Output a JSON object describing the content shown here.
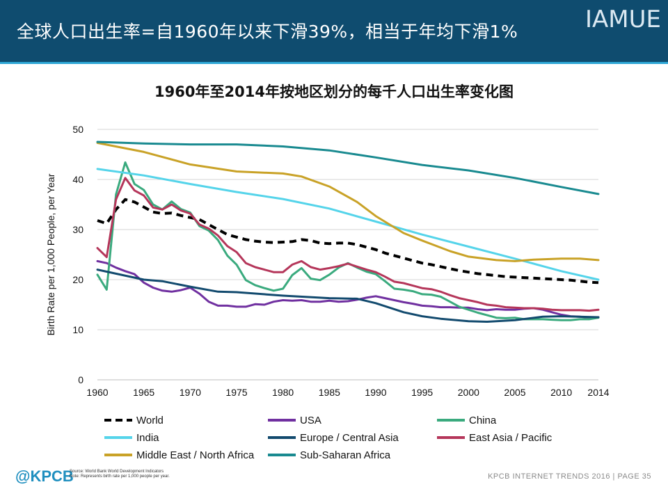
{
  "header": {
    "title": "全球人口出生率=自1960年以来下滑39%，相当于年均下滑1%",
    "brand": "IAMUE",
    "bg_color": "#0f4c6f",
    "accent_color": "#2fa7d6"
  },
  "footer": {
    "logo": "@KPCB",
    "source_line1": "Source: World Bank World Development Indicators",
    "source_line2": "Note: Represents birth rate per 1,000 people per year.",
    "text": "KPCB INTERNET TRENDS 2016  |  PAGE 35"
  },
  "chart_data": {
    "type": "line",
    "title": "1960年至2014年按地区划分的每千人口出生率变化图",
    "xlabel": "",
    "ylabel": "Birth Rate per 1,000 People, per Year",
    "xlim": [
      1960,
      2014
    ],
    "ylim": [
      0,
      50
    ],
    "x_ticks": [
      1960,
      1965,
      1970,
      1975,
      1980,
      1985,
      1990,
      1995,
      2000,
      2005,
      2010,
      2014
    ],
    "y_ticks": [
      0,
      10,
      20,
      30,
      40,
      50
    ],
    "grid": true,
    "legend_position": "bottom",
    "series": [
      {
        "name": "World",
        "color": "#000000",
        "dashed": true,
        "points": [
          [
            1960,
            31.8
          ],
          [
            1961,
            31.2
          ],
          [
            1962,
            34
          ],
          [
            1963,
            36
          ],
          [
            1964,
            35.5
          ],
          [
            1965,
            34.5
          ],
          [
            1966,
            33.5
          ],
          [
            1967,
            33.2
          ],
          [
            1968,
            33.3
          ],
          [
            1969,
            32.8
          ],
          [
            1970,
            32.4
          ],
          [
            1971,
            32
          ],
          [
            1972,
            31
          ],
          [
            1973,
            30
          ],
          [
            1974,
            29
          ],
          [
            1975,
            28.5
          ],
          [
            1976,
            28
          ],
          [
            1977,
            27.7
          ],
          [
            1978,
            27.5
          ],
          [
            1979,
            27.4
          ],
          [
            1980,
            27.5
          ],
          [
            1981,
            27.6
          ],
          [
            1982,
            28
          ],
          [
            1983,
            27.8
          ],
          [
            1984,
            27.3
          ],
          [
            1985,
            27.2
          ],
          [
            1986,
            27.3
          ],
          [
            1987,
            27.3
          ],
          [
            1988,
            27
          ],
          [
            1989,
            26.5
          ],
          [
            1990,
            26
          ],
          [
            1991,
            25.3
          ],
          [
            1992,
            24.8
          ],
          [
            1993,
            24.3
          ],
          [
            1994,
            23.8
          ],
          [
            1995,
            23.3
          ],
          [
            1996,
            23
          ],
          [
            1997,
            22.6
          ],
          [
            1998,
            22.2
          ],
          [
            1999,
            21.8
          ],
          [
            2000,
            21.5
          ],
          [
            2001,
            21.2
          ],
          [
            2002,
            21
          ],
          [
            2003,
            20.8
          ],
          [
            2004,
            20.6
          ],
          [
            2005,
            20.5
          ],
          [
            2006,
            20.4
          ],
          [
            2007,
            20.3
          ],
          [
            2008,
            20.2
          ],
          [
            2009,
            20.1
          ],
          [
            2010,
            20
          ],
          [
            2011,
            19.9
          ],
          [
            2012,
            19.7
          ],
          [
            2013,
            19.5
          ],
          [
            2014,
            19.4
          ]
        ]
      },
      {
        "name": "USA",
        "color": "#7030a0",
        "points": [
          [
            1960,
            23.7
          ],
          [
            1961,
            23.3
          ],
          [
            1962,
            22.4
          ],
          [
            1963,
            21.7
          ],
          [
            1964,
            21.1
          ],
          [
            1965,
            19.4
          ],
          [
            1966,
            18.4
          ],
          [
            1967,
            17.8
          ],
          [
            1968,
            17.6
          ],
          [
            1969,
            17.9
          ],
          [
            1970,
            18.4
          ],
          [
            1971,
            17.2
          ],
          [
            1972,
            15.6
          ],
          [
            1973,
            14.8
          ],
          [
            1974,
            14.8
          ],
          [
            1975,
            14.6
          ],
          [
            1976,
            14.6
          ],
          [
            1977,
            15.1
          ],
          [
            1978,
            15
          ],
          [
            1979,
            15.6
          ],
          [
            1980,
            15.9
          ],
          [
            1981,
            15.8
          ],
          [
            1982,
            15.9
          ],
          [
            1983,
            15.6
          ],
          [
            1984,
            15.6
          ],
          [
            1985,
            15.8
          ],
          [
            1986,
            15.6
          ],
          [
            1987,
            15.7
          ],
          [
            1988,
            16
          ],
          [
            1989,
            16.4
          ],
          [
            1990,
            16.7
          ],
          [
            1991,
            16.3
          ],
          [
            1992,
            15.9
          ],
          [
            1993,
            15.5
          ],
          [
            1994,
            15.2
          ],
          [
            1995,
            14.8
          ],
          [
            1996,
            14.7
          ],
          [
            1997,
            14.5
          ],
          [
            1998,
            14.5
          ],
          [
            1999,
            14.4
          ],
          [
            2000,
            14.4
          ],
          [
            2001,
            14.1
          ],
          [
            2002,
            13.9
          ],
          [
            2003,
            14.1
          ],
          [
            2004,
            14
          ],
          [
            2005,
            14
          ],
          [
            2006,
            14.2
          ],
          [
            2007,
            14.3
          ],
          [
            2008,
            14
          ],
          [
            2009,
            13.5
          ],
          [
            2010,
            13
          ],
          [
            2011,
            12.7
          ],
          [
            2012,
            12.6
          ],
          [
            2013,
            12.4
          ],
          [
            2014,
            12.5
          ]
        ]
      },
      {
        "name": "China",
        "color": "#3aaa7e",
        "points": [
          [
            1960,
            21
          ],
          [
            1961,
            18
          ],
          [
            1962,
            37
          ],
          [
            1963,
            43.4
          ],
          [
            1964,
            39.1
          ],
          [
            1965,
            37.9
          ],
          [
            1966,
            35
          ],
          [
            1967,
            34
          ],
          [
            1968,
            35.6
          ],
          [
            1969,
            34.1
          ],
          [
            1970,
            33.4
          ],
          [
            1971,
            30.7
          ],
          [
            1972,
            29.8
          ],
          [
            1973,
            27.9
          ],
          [
            1974,
            24.8
          ],
          [
            1975,
            23
          ],
          [
            1976,
            19.9
          ],
          [
            1977,
            18.9
          ],
          [
            1978,
            18.3
          ],
          [
            1979,
            17.8
          ],
          [
            1980,
            18.2
          ],
          [
            1981,
            20.9
          ],
          [
            1982,
            22.3
          ],
          [
            1983,
            20.2
          ],
          [
            1984,
            19.9
          ],
          [
            1985,
            21
          ],
          [
            1986,
            22.4
          ],
          [
            1987,
            23.3
          ],
          [
            1988,
            22.4
          ],
          [
            1989,
            21.6
          ],
          [
            1990,
            21.1
          ],
          [
            1991,
            19.7
          ],
          [
            1992,
            18.2
          ],
          [
            1993,
            18
          ],
          [
            1994,
            17.7
          ],
          [
            1995,
            17.1
          ],
          [
            1996,
            17
          ],
          [
            1997,
            16.6
          ],
          [
            1998,
            15.6
          ],
          [
            1999,
            14.6
          ],
          [
            2000,
            14
          ],
          [
            2001,
            13.4
          ],
          [
            2002,
            12.9
          ],
          [
            2003,
            12.4
          ],
          [
            2004,
            12.3
          ],
          [
            2005,
            12.4
          ],
          [
            2006,
            12.1
          ],
          [
            2007,
            12.1
          ],
          [
            2008,
            12.1
          ],
          [
            2009,
            12
          ],
          [
            2010,
            11.9
          ],
          [
            2011,
            11.9
          ],
          [
            2012,
            12.1
          ],
          [
            2013,
            12.1
          ],
          [
            2014,
            12.4
          ]
        ]
      },
      {
        "name": "India",
        "color": "#55d4ea",
        "points": [
          [
            1960,
            42.1
          ],
          [
            1965,
            40.8
          ],
          [
            1970,
            39.1
          ],
          [
            1975,
            37.5
          ],
          [
            1980,
            36.1
          ],
          [
            1985,
            34.2
          ],
          [
            1990,
            31.6
          ],
          [
            1995,
            29
          ],
          [
            2000,
            26.6
          ],
          [
            2005,
            24.2
          ],
          [
            2010,
            21.7
          ],
          [
            2014,
            20
          ]
        ]
      },
      {
        "name": "Europe / Central Asia",
        "color": "#124a6e",
        "points": [
          [
            1960,
            22
          ],
          [
            1965,
            20
          ],
          [
            1967,
            19.7
          ],
          [
            1970,
            18.6
          ],
          [
            1973,
            17.6
          ],
          [
            1975,
            17.5
          ],
          [
            1980,
            16.8
          ],
          [
            1985,
            16.3
          ],
          [
            1988,
            16.2
          ],
          [
            1990,
            15.3
          ],
          [
            1993,
            13.5
          ],
          [
            1995,
            12.7
          ],
          [
            1997,
            12.2
          ],
          [
            2000,
            11.7
          ],
          [
            2002,
            11.6
          ],
          [
            2005,
            11.9
          ],
          [
            2008,
            12.6
          ],
          [
            2010,
            12.7
          ],
          [
            2014,
            12.5
          ]
        ]
      },
      {
        "name": "East Asia / Pacific",
        "color": "#b5365a",
        "points": [
          [
            1960,
            26.3
          ],
          [
            1961,
            24.5
          ],
          [
            1962,
            36
          ],
          [
            1963,
            40.3
          ],
          [
            1964,
            37.8
          ],
          [
            1965,
            36.8
          ],
          [
            1966,
            34.4
          ],
          [
            1967,
            34
          ],
          [
            1968,
            35
          ],
          [
            1969,
            33.8
          ],
          [
            1970,
            33.2
          ],
          [
            1971,
            31
          ],
          [
            1972,
            30.2
          ],
          [
            1973,
            28.8
          ],
          [
            1974,
            26.7
          ],
          [
            1975,
            25.5
          ],
          [
            1976,
            23.3
          ],
          [
            1977,
            22.5
          ],
          [
            1978,
            22
          ],
          [
            1979,
            21.5
          ],
          [
            1980,
            21.5
          ],
          [
            1981,
            23
          ],
          [
            1982,
            23.7
          ],
          [
            1983,
            22.5
          ],
          [
            1984,
            22
          ],
          [
            1985,
            22.3
          ],
          [
            1986,
            22.7
          ],
          [
            1987,
            23.2
          ],
          [
            1988,
            22.6
          ],
          [
            1989,
            22
          ],
          [
            1990,
            21.5
          ],
          [
            1991,
            20.6
          ],
          [
            1992,
            19.6
          ],
          [
            1993,
            19.3
          ],
          [
            1994,
            18.8
          ],
          [
            1995,
            18.3
          ],
          [
            1996,
            18.1
          ],
          [
            1997,
            17.6
          ],
          [
            1998,
            16.9
          ],
          [
            1999,
            16.3
          ],
          [
            2000,
            15.9
          ],
          [
            2001,
            15.5
          ],
          [
            2002,
            15
          ],
          [
            2003,
            14.8
          ],
          [
            2004,
            14.5
          ],
          [
            2005,
            14.4
          ],
          [
            2006,
            14.3
          ],
          [
            2007,
            14.3
          ],
          [
            2008,
            14.2
          ],
          [
            2009,
            14
          ],
          [
            2010,
            13.9
          ],
          [
            2011,
            13.9
          ],
          [
            2012,
            13.9
          ],
          [
            2013,
            13.8
          ],
          [
            2014,
            14
          ]
        ]
      },
      {
        "name": "Middle East / North Africa",
        "color": "#c9a227",
        "points": [
          [
            1960,
            47.3
          ],
          [
            1965,
            45.5
          ],
          [
            1970,
            43
          ],
          [
            1975,
            41.6
          ],
          [
            1980,
            41.2
          ],
          [
            1982,
            40.6
          ],
          [
            1985,
            38.6
          ],
          [
            1988,
            35.5
          ],
          [
            1990,
            32.7
          ],
          [
            1993,
            29.3
          ],
          [
            1995,
            27.8
          ],
          [
            1998,
            25.7
          ],
          [
            2000,
            24.6
          ],
          [
            2003,
            23.9
          ],
          [
            2005,
            23.7
          ],
          [
            2007,
            24
          ],
          [
            2010,
            24.2
          ],
          [
            2012,
            24.2
          ],
          [
            2014,
            23.9
          ]
        ]
      },
      {
        "name": "Sub-Saharan Africa",
        "color": "#198a90",
        "points": [
          [
            1960,
            47.5
          ],
          [
            1965,
            47.2
          ],
          [
            1970,
            47
          ],
          [
            1975,
            47
          ],
          [
            1980,
            46.6
          ],
          [
            1985,
            45.8
          ],
          [
            1990,
            44.4
          ],
          [
            1995,
            42.9
          ],
          [
            2000,
            41.8
          ],
          [
            2005,
            40.3
          ],
          [
            2010,
            38.5
          ],
          [
            2014,
            37.1
          ]
        ]
      }
    ]
  }
}
